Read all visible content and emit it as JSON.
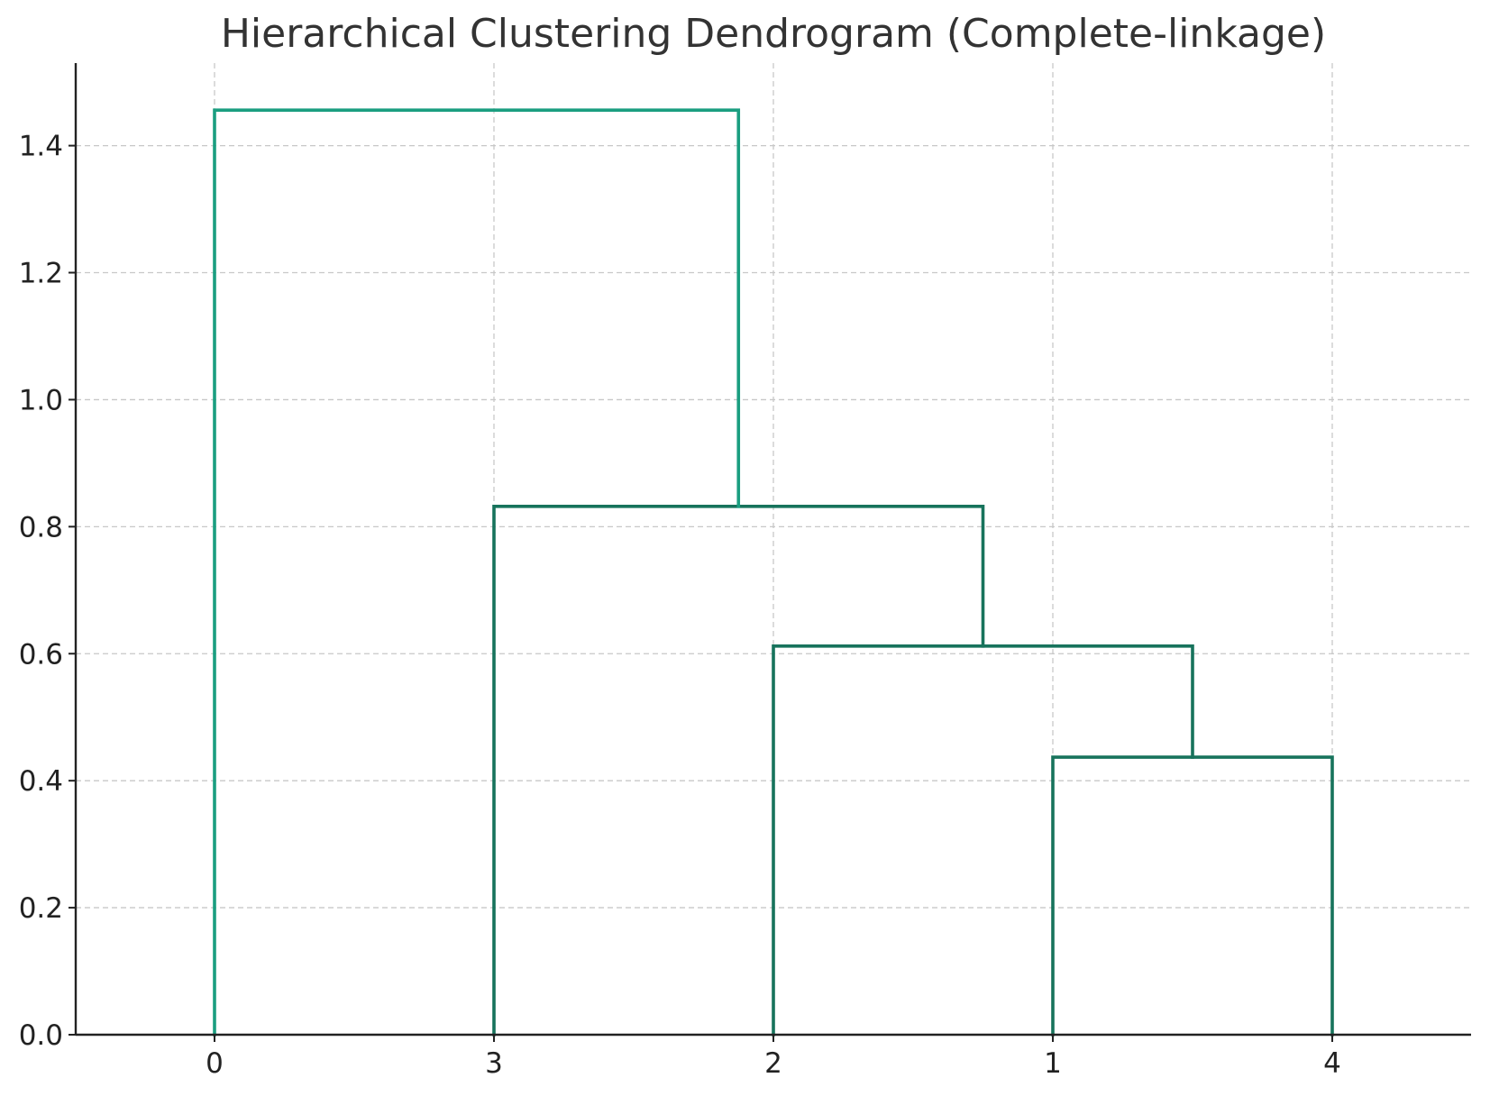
{
  "chart_data": {
    "type": "dendrogram",
    "title": "Hierarchical Clustering Dendrogram (Complete-linkage)",
    "xlabel": "",
    "ylabel": "",
    "leaf_order": [
      "0",
      "3",
      "2",
      "1",
      "4"
    ],
    "ylim": [
      0,
      1.53
    ],
    "yticks": [
      0.0,
      0.2,
      0.4,
      0.6,
      0.8,
      1.0,
      1.2,
      1.4
    ],
    "ytick_labels": [
      "0.0",
      "0.2",
      "0.4",
      "0.6",
      "0.8",
      "1.0",
      "1.2",
      "1.4"
    ],
    "grid": true,
    "merges": [
      {
        "left": "1",
        "right": "4",
        "height": 0.437
      },
      {
        "left": "2",
        "right": "1+4",
        "height": 0.612
      },
      {
        "left": "3",
        "right": "2+1+4",
        "height": 0.832
      },
      {
        "left": "0",
        "right": "3+2+1+4",
        "height": 1.456
      }
    ],
    "colors": {
      "top_link": "#1a9e80",
      "cluster_links": "#17735c",
      "axis": "#222222",
      "grid": "#c8c8c8"
    }
  }
}
